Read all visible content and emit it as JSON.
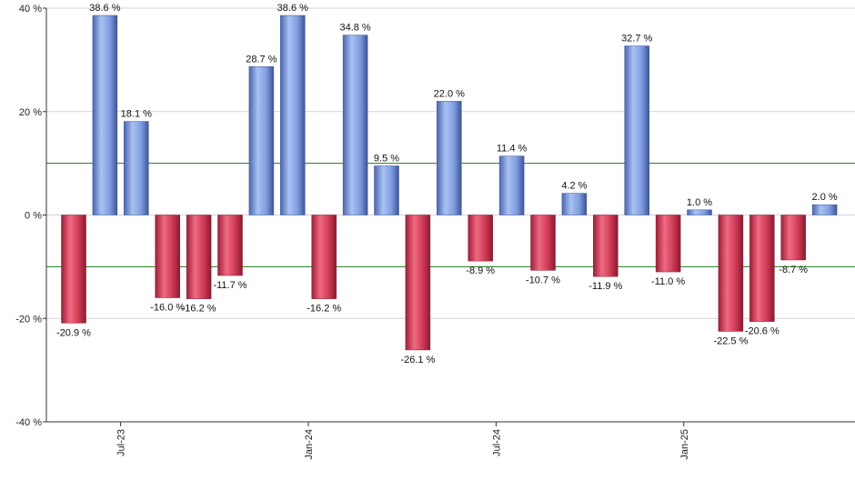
{
  "chart_data": {
    "type": "bar",
    "title": "",
    "xlabel": "",
    "ylabel": "",
    "ylim": [
      -40,
      40
    ],
    "y_ticks": [
      40,
      20,
      0,
      -20,
      -40
    ],
    "y_tick_labels": [
      "40 %",
      "20 %",
      "0 %",
      "-20 %",
      "-40 %"
    ],
    "x_tick_labels": [
      "Jul-23",
      "Jan-24",
      "Jul-24",
      "Jan-25"
    ],
    "x_tick_after_bar": [
      2,
      8,
      14,
      20
    ],
    "reference_lines": [
      10,
      -10
    ],
    "grid": true,
    "legend": "none",
    "colors": {
      "positive": "#6f8fd6",
      "negative": "#cf3a55",
      "grid": "#d4d4d4",
      "reference": "#1f7a1f",
      "axis": "#333333"
    },
    "values": [
      -20.9,
      38.6,
      18.1,
      -16.0,
      -16.2,
      -11.7,
      28.7,
      38.6,
      -16.2,
      34.8,
      9.5,
      -26.1,
      22.0,
      -8.9,
      11.4,
      -10.7,
      4.2,
      -11.9,
      32.7,
      -11.0,
      1.0,
      -22.5,
      -20.6,
      -8.7,
      2.0
    ],
    "labels": [
      "-20.9 %",
      "38.6 %",
      "18.1 %",
      "-16.0 %",
      "-16.2 %",
      "-11.7 %",
      "28.7 %",
      "38.6 %",
      "-16.2 %",
      "34.8 %",
      "9.5 %",
      "-26.1 %",
      "22.0 %",
      "-8.9 %",
      "11.4 %",
      "-10.7 %",
      "4.2 %",
      "-11.9 %",
      "32.7 %",
      "-11.0 %",
      "1.0 %",
      "-22.5 %",
      "-20.6 %",
      "-8.7 %",
      "2.0 %"
    ]
  }
}
